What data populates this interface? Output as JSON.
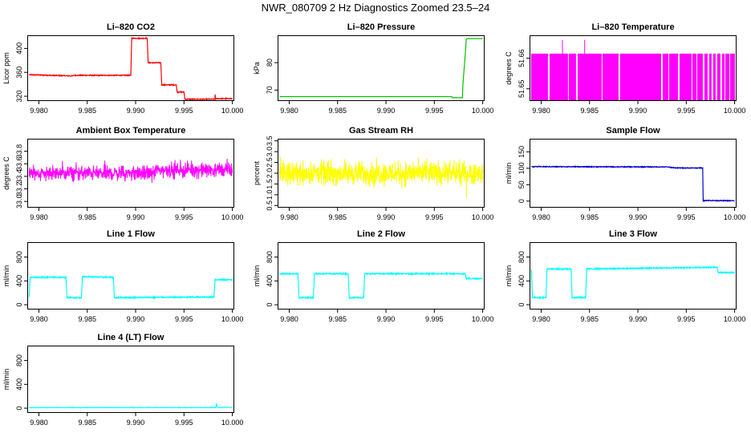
{
  "page": {
    "title": "NWR_080709  2 Hz Diagnostics Zoomed 23.5–24"
  },
  "chart_data": [
    {
      "type": "line",
      "title": "Li–820 CO2",
      "xlabel": "",
      "ylabel": "Licor ppm",
      "color": "#ff0000",
      "xlim": [
        9.9788,
        10.0002
      ],
      "ylim": [
        312,
        422
      ],
      "xticks": [
        9.98,
        9.985,
        9.99,
        9.995,
        10.0
      ],
      "xticklabels": [
        "9.980",
        "9.985",
        "9.990",
        "9.995",
        "10.000"
      ],
      "yticks": [
        320,
        360,
        400
      ],
      "yticklabels": [
        "320",
        "360",
        "400"
      ],
      "noise": 0.8,
      "x": [
        9.979,
        9.9835,
        9.9836,
        9.9895,
        9.9896,
        9.9912,
        9.9913,
        9.9926,
        9.9927,
        9.9942,
        9.9943,
        9.995,
        9.9951,
        9.9982,
        9.99822,
        9.99828,
        9.9984,
        10.0
      ],
      "y": [
        356,
        354,
        355,
        355,
        417,
        417,
        376,
        376,
        339,
        339,
        327,
        327,
        315,
        315,
        323,
        315,
        316,
        316
      ]
    },
    {
      "type": "line",
      "title": "Li–820 Pressure",
      "xlabel": "",
      "ylabel": "kPa",
      "color": "#00c000",
      "xlim": [
        9.9788,
        10.0002
      ],
      "ylim": [
        66,
        90
      ],
      "xticks": [
        9.98,
        9.985,
        9.99,
        9.995,
        10.0
      ],
      "xticklabels": [
        "9.980",
        "9.985",
        "9.990",
        "9.995",
        "10.000"
      ],
      "yticks": [
        70,
        80
      ],
      "yticklabels": [
        "70",
        "80"
      ],
      "noise": 0,
      "x": [
        9.979,
        9.9968,
        9.99685,
        9.9979,
        9.99795,
        9.9982,
        9.9983,
        9.9984,
        10.0
      ],
      "y": [
        67.6,
        67.6,
        67.2,
        67.2,
        72,
        83,
        88.5,
        88.8,
        88.8
      ]
    },
    {
      "type": "bar",
      "title": "Li–820 Temperature",
      "xlabel": "",
      "ylabel": "degrees C",
      "color": "#ff00ff",
      "xlim": [
        9.9788,
        10.0002
      ],
      "ylim": [
        51.646,
        51.6675
      ],
      "xticks": [
        9.98,
        9.985,
        9.99,
        9.995,
        10.0
      ],
      "xticklabels": [
        "9.980",
        "9.985",
        "9.990",
        "9.995",
        "10.000"
      ],
      "yticks": [
        51.65,
        51.66
      ],
      "yticklabels": [
        "51.65",
        "51.66"
      ],
      "fill_range": [
        9.979,
        10.0
      ],
      "base": 51.646,
      "level": 51.6615,
      "spikes_x": [
        9.9822,
        9.9845
      ],
      "spike_level": 51.666,
      "gaps_x": [
        9.9808,
        9.9828,
        9.9837,
        9.9863,
        9.9881,
        9.9925,
        9.9932,
        9.9942,
        9.9956,
        9.9961,
        9.9968,
        9.9973,
        9.9977,
        9.9981,
        9.9986,
        9.999,
        9.9995
      ]
    },
    {
      "type": "line",
      "title": "Ambient Box Temperature",
      "xlabel": "",
      "ylabel": "degrees C",
      "color": "#ff00ff",
      "xlim": [
        9.9788,
        10.0002
      ],
      "ylim": [
        32.9,
        34.0
      ],
      "xticks": [
        9.98,
        9.985,
        9.99,
        9.995,
        10.0
      ],
      "xticklabels": [
        "9.980",
        "9.985",
        "9.990",
        "9.995",
        "10.000"
      ],
      "yticks": [
        33.0,
        33.2,
        33.4,
        33.6,
        33.8
      ],
      "yticklabels": [
        "33.0",
        "33.2",
        "33.4",
        "33.6",
        "33.8"
      ],
      "noise_band": {
        "x": [
          9.979,
          9.992,
          9.992,
          10.0
        ],
        "center": [
          33.45,
          33.45,
          33.5,
          33.5
        ],
        "amp": 0.17,
        "n": 900
      }
    },
    {
      "type": "line",
      "title": "Gas Stream RH",
      "xlabel": "",
      "ylabel": "percent",
      "color": "#ffff00",
      "xlim": [
        9.9788,
        10.0002
      ],
      "ylim": [
        0.4,
        3.6
      ],
      "xticks": [
        9.98,
        9.985,
        9.99,
        9.995,
        10.0
      ],
      "xticklabels": [
        "9.980",
        "9.985",
        "9.990",
        "9.995",
        "10.000"
      ],
      "yticks": [
        0.5,
        1.0,
        1.5,
        2.0,
        2.5,
        3.0,
        3.5
      ],
      "yticklabels": [
        "0.5",
        "1.0",
        "1.5",
        "2.0",
        "2.5",
        "3.0",
        "3.5"
      ],
      "noise_band": {
        "x": [
          9.979,
          10.0
        ],
        "center": [
          2.0,
          2.0
        ],
        "amp": 0.8,
        "n": 900
      }
    },
    {
      "type": "line",
      "title": "Sample Flow",
      "xlabel": "",
      "ylabel": "ml/min",
      "color": "#0000cc",
      "xlim": [
        9.9788,
        10.0002
      ],
      "ylim": [
        -20,
        190
      ],
      "xticks": [
        9.98,
        9.985,
        9.99,
        9.995,
        10.0
      ],
      "xticklabels": [
        "9.980",
        "9.985",
        "9.990",
        "9.995",
        "10.000"
      ],
      "yticks": [
        0,
        50,
        100,
        150
      ],
      "yticklabels": [
        "0",
        "50",
        "100",
        "150"
      ],
      "noise": 1.2,
      "x": [
        9.979,
        9.993,
        9.994,
        9.9967,
        9.99675,
        9.9969,
        10.0
      ],
      "y": [
        105,
        104,
        101,
        101,
        0,
        2,
        1
      ]
    },
    {
      "type": "line",
      "title": "Line 1 Flow",
      "xlabel": "",
      "ylabel": "ml/min",
      "color": "#00ffff",
      "xlim": [
        9.9788,
        10.0002
      ],
      "ylim": [
        -80,
        1050
      ],
      "xticks": [
        9.98,
        9.985,
        9.99,
        9.995,
        10.0
      ],
      "xticklabels": [
        "9.980",
        "9.985",
        "9.990",
        "9.995",
        "10.000"
      ],
      "yticks": [
        0,
        400,
        800
      ],
      "yticklabels": [
        "0",
        "400",
        "800"
      ],
      "noise": 10,
      "x": [
        9.979,
        9.9791,
        9.9828,
        9.9829,
        9.9844,
        9.9845,
        9.9877,
        9.9878,
        9.9981,
        9.9982,
        10.0
      ],
      "y": [
        130,
        460,
        460,
        120,
        120,
        470,
        460,
        120,
        130,
        420,
        420
      ]
    },
    {
      "type": "line",
      "title": "Line 2 Flow",
      "xlabel": "",
      "ylabel": "ml/min",
      "color": "#00ffff",
      "xlim": [
        9.9788,
        10.0002
      ],
      "ylim": [
        -80,
        1050
      ],
      "xticks": [
        9.98,
        9.985,
        9.99,
        9.995,
        10.0
      ],
      "xticklabels": [
        "9.980",
        "9.985",
        "9.990",
        "9.995",
        "10.000"
      ],
      "yticks": [
        0,
        400,
        800
      ],
      "yticklabels": [
        "0",
        "400",
        "800"
      ],
      "noise": 10,
      "x": [
        9.979,
        9.9809,
        9.981,
        9.9825,
        9.9826,
        9.9861,
        9.9862,
        9.9877,
        9.9878,
        9.9982,
        9.9983,
        10.0
      ],
      "y": [
        520,
        520,
        120,
        120,
        520,
        520,
        120,
        120,
        520,
        520,
        440,
        440
      ]
    },
    {
      "type": "line",
      "title": "Line 3 Flow",
      "xlabel": "",
      "ylabel": "ml/min",
      "color": "#00ffff",
      "xlim": [
        9.9788,
        10.0002
      ],
      "ylim": [
        -80,
        1050
      ],
      "xticks": [
        9.98,
        9.985,
        9.99,
        9.995,
        10.0
      ],
      "xticklabels": [
        "9.980",
        "9.985",
        "9.990",
        "9.995",
        "10.000"
      ],
      "yticks": [
        0,
        400,
        800
      ],
      "yticklabels": [
        "0",
        "400",
        "800"
      ],
      "noise": 10,
      "x": [
        9.979,
        9.9791,
        9.9805,
        9.9806,
        9.9831,
        9.9832,
        9.9846,
        9.9847,
        9.9982,
        9.9983,
        10.0
      ],
      "y": [
        580,
        120,
        120,
        600,
        600,
        120,
        120,
        600,
        630,
        540,
        540
      ]
    },
    {
      "type": "line",
      "title": "Line 4 (LT) Flow",
      "xlabel": "",
      "ylabel": "ml/min",
      "color": "#00ffff",
      "xlim": [
        9.9788,
        10.0002
      ],
      "ylim": [
        -80,
        1050
      ],
      "xticks": [
        9.98,
        9.985,
        9.99,
        9.995,
        10.0
      ],
      "xticklabels": [
        "9.980",
        "9.985",
        "9.990",
        "9.995",
        "10.000"
      ],
      "yticks": [
        0,
        400,
        800
      ],
      "yticklabels": [
        "0",
        "400",
        "800"
      ],
      "noise": 3,
      "x": [
        9.979,
        9.9983,
        9.99835,
        9.9984,
        9.9985,
        10.0
      ],
      "y": [
        10,
        10,
        80,
        30,
        12,
        12
      ]
    }
  ]
}
